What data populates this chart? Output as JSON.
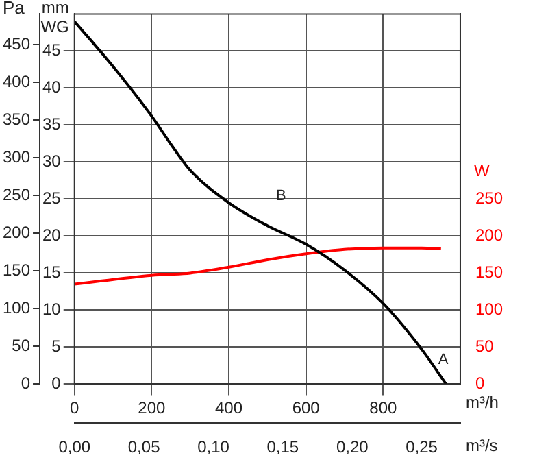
{
  "chart_data": {
    "type": "line",
    "xlabel": "m³/h",
    "x2label": "m³/s",
    "ylabel": "mm WG",
    "y2label": "Pa",
    "y3label": "W",
    "xlim": [
      0,
      1000
    ],
    "xticks": [
      0,
      200,
      400,
      600,
      800
    ],
    "x2lim": [
      0,
      0.2778
    ],
    "x2ticks": [
      {
        "value": 0,
        "label": "0,00"
      },
      {
        "value": 0.05,
        "label": "0,05"
      },
      {
        "value": 0.1,
        "label": "0,10"
      },
      {
        "value": 0.15,
        "label": "0,15"
      },
      {
        "value": 0.2,
        "label": "0,20"
      },
      {
        "value": 0.25,
        "label": "0,25"
      }
    ],
    "ylim": [
      0,
      50
    ],
    "yticks": [
      0,
      5,
      10,
      15,
      20,
      25,
      30,
      35,
      40,
      45
    ],
    "y2lim": [
      0,
      490.5
    ],
    "y2ticks": [
      0,
      50,
      100,
      150,
      200,
      250,
      300,
      350,
      400,
      450
    ],
    "y3lim": [
      0,
      500
    ],
    "y3ticks": [
      0,
      50,
      100,
      150,
      200,
      250
    ],
    "series": [
      {
        "color": "#000000",
        "axis": "y",
        "x": [
          0,
          100,
          200,
          250,
          300,
          400,
          500,
          600,
          700,
          800,
          900,
          963
        ],
        "values": [
          49,
          42.9,
          36.2,
          32.4,
          28.9,
          24.5,
          21.4,
          18.9,
          15.4,
          10.9,
          4.7,
          0
        ]
      },
      {
        "color": "#ff0000",
        "axis": "y3",
        "x": [
          0,
          200,
          300,
          400,
          500,
          600,
          700,
          800,
          900,
          950
        ],
        "values": [
          135,
          147,
          150,
          158,
          168,
          176,
          182,
          184,
          184,
          183
        ]
      }
    ],
    "annotations": [
      "B",
      "A"
    ],
    "grid": true,
    "legend": false,
    "marker": "none",
    "line_style": "solid"
  }
}
